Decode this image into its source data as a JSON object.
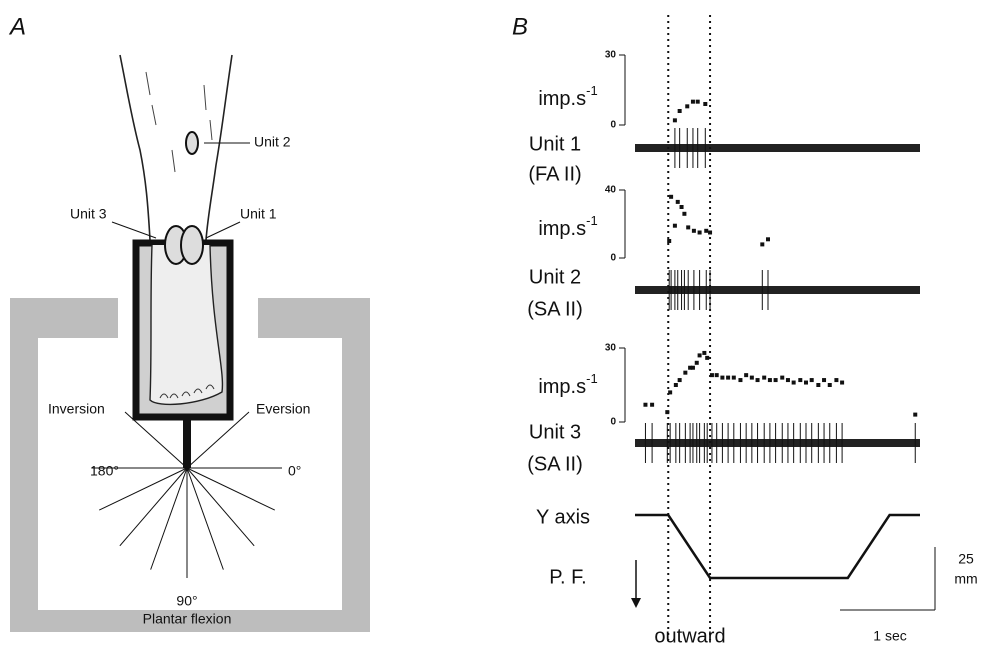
{
  "panel_a": {
    "label": "A",
    "unit_labels": {
      "unit_2": "Unit 2",
      "unit_3": "Unit 3",
      "unit_1": "Unit 1"
    },
    "directions": {
      "inversion": "Inversion",
      "eversion": "Eversion",
      "left": "180°",
      "right": "0°",
      "down": "90°",
      "down_name": "Plantar flexion"
    }
  },
  "panel_b": {
    "label": "B",
    "xlim": [
      0,
      3
    ],
    "units": [
      {
        "name": "Unit 1",
        "class": "(FA II)",
        "rate_label": {
          "base": "imp.s",
          "sup": "-1"
        },
        "ylim": [
          0,
          30
        ],
        "yticks": [
          0,
          30
        ],
        "t": [
          0.42,
          0.47,
          0.55,
          0.61,
          0.66,
          0.74
        ],
        "rate": [
          2,
          6,
          8,
          10,
          10,
          9
        ]
      },
      {
        "name": "Unit 2",
        "class": "(SA II)",
        "rate_label": {
          "base": "imp.s",
          "sup": "-1"
        },
        "ylim": [
          0,
          40
        ],
        "yticks": [
          0,
          40
        ],
        "t": [
          0.36,
          0.38,
          0.42,
          0.45,
          0.49,
          0.52,
          0.56,
          0.62,
          0.68,
          0.75,
          0.79,
          1.34,
          1.4
        ],
        "rate": [
          10,
          36,
          19,
          33,
          30,
          26,
          18,
          16,
          15,
          16,
          15,
          8,
          11
        ]
      },
      {
        "name": "Unit 3",
        "class": "(SA II)",
        "rate_label": {
          "base": "imp.s",
          "sup": "-1"
        },
        "ylim": [
          0,
          30
        ],
        "yticks": [
          0,
          30
        ],
        "t": [
          0.11,
          0.18,
          0.34,
          0.37,
          0.43,
          0.47,
          0.53,
          0.58,
          0.61,
          0.65,
          0.68,
          0.73,
          0.76,
          0.81,
          0.86,
          0.92,
          0.98,
          1.04,
          1.11,
          1.17,
          1.23,
          1.29,
          1.36,
          1.42,
          1.48,
          1.55,
          1.61,
          1.67,
          1.74,
          1.8,
          1.86,
          1.93,
          1.99,
          2.05,
          2.12,
          2.18,
          2.95
        ],
        "rate": [
          7,
          7,
          4,
          12,
          15,
          17,
          20,
          22,
          22,
          24,
          27,
          28,
          26,
          19,
          19,
          18,
          18,
          18,
          17,
          19,
          18,
          17,
          18,
          17,
          17,
          18,
          17,
          16,
          17,
          16,
          17,
          15,
          17,
          15,
          17,
          16,
          3
        ]
      }
    ],
    "position": {
      "label": "Y axis",
      "direction": "P. F.",
      "t": [
        0,
        0.35,
        0.79,
        2.24,
        2.68,
        3
      ],
      "mm": [
        0,
        0,
        -25,
        -25,
        0,
        0
      ]
    },
    "markers": [
      0.35,
      0.79
    ],
    "stimulus": "outward",
    "scale_bar": {
      "amplitude": 25,
      "amplitude_unit": "mm",
      "time": {
        "value": 1,
        "label": "1 sec"
      }
    }
  }
}
